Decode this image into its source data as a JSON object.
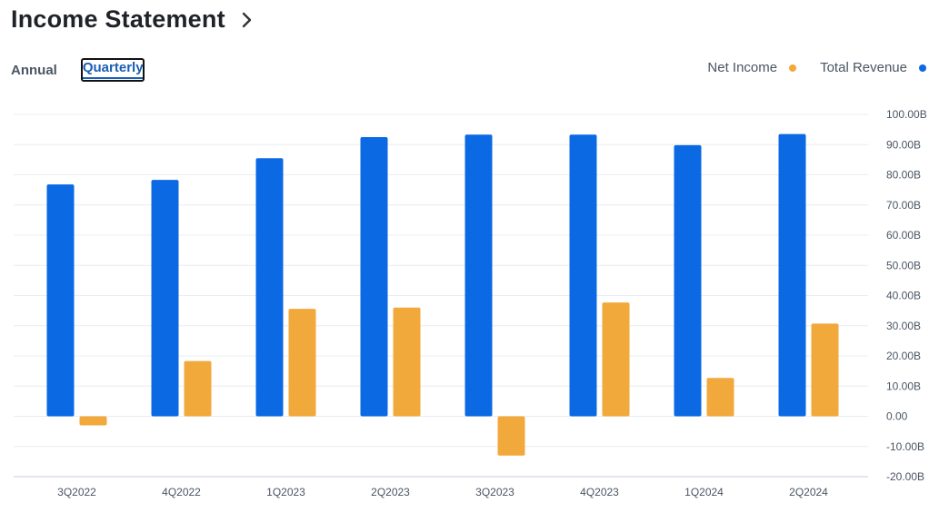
{
  "header": {
    "title": "Income Statement",
    "chevron_icon": "chevron-right-icon"
  },
  "tabs": [
    {
      "label": "Annual",
      "active": false
    },
    {
      "label": "Quarterly",
      "active": true
    }
  ],
  "legend": [
    {
      "label": "Net Income",
      "color": "#f2a93b"
    },
    {
      "label": "Total Revenue",
      "color": "#0b69e3"
    }
  ],
  "chart_data": {
    "type": "bar",
    "categories": [
      "3Q2022",
      "4Q2022",
      "1Q2023",
      "2Q2023",
      "3Q2023",
      "4Q2023",
      "1Q2024",
      "2Q2024"
    ],
    "series": [
      {
        "name": "Total Revenue",
        "color": "#0b69e3",
        "values": [
          76.8,
          78.3,
          85.5,
          92.5,
          93.3,
          93.3,
          89.8,
          93.5
        ]
      },
      {
        "name": "Net Income",
        "color": "#f2a93b",
        "values": [
          -3.0,
          18.3,
          35.6,
          36.0,
          -13.0,
          37.7,
          12.7,
          30.7
        ]
      }
    ],
    "ylim": [
      -20,
      100
    ],
    "yticks": [
      "100.00B",
      "90.00B",
      "80.00B",
      "70.00B",
      "60.00B",
      "50.00B",
      "40.00B",
      "30.00B",
      "20.00B",
      "10.00B",
      "0.00",
      "-10.00B",
      "-20.00B"
    ],
    "ytick_values": [
      100,
      90,
      80,
      70,
      60,
      50,
      40,
      30,
      20,
      10,
      0,
      -10,
      -20
    ],
    "grid": true,
    "legend_position": "top-right"
  }
}
